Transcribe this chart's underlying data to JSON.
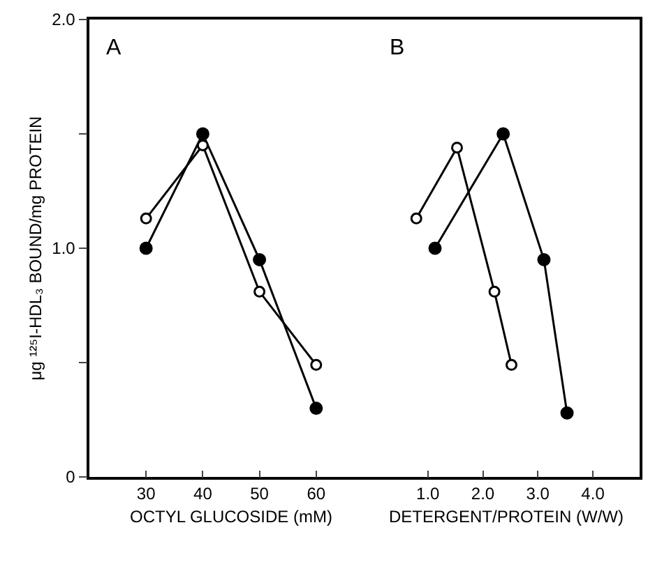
{
  "chart_data": [
    {
      "type": "line",
      "title": "A",
      "xlabel": "OCTYL GLUCOSIDE (mM)",
      "ylabel": "μg ¹²⁵I-HDL₃ BOUND/mg PROTEIN",
      "x": [
        30,
        40,
        50,
        60
      ],
      "xlim": [
        20,
        70
      ],
      "xticks": [
        30,
        40,
        50,
        60
      ],
      "ylim": [
        0,
        2.0
      ],
      "yticks": [
        {
          "value": 0,
          "label": "0"
        },
        {
          "value": 0.5,
          "label": null
        },
        {
          "value": 1.0,
          "label": "1.0"
        },
        {
          "value": 1.5,
          "label": null
        },
        {
          "value": 2.0,
          "label": "2.0"
        }
      ],
      "grid": false,
      "series": [
        {
          "color": "#000000",
          "marker": "circle",
          "values": [
            1.0,
            1.5,
            0.95,
            0.3
          ]
        },
        {
          "color": "#000000",
          "marker": "circle-open",
          "values": [
            1.13,
            1.45,
            0.81,
            0.49
          ]
        }
      ]
    },
    {
      "type": "line",
      "title": "B",
      "xlabel": "DETERGENT/PROTEIN (W/W)",
      "xlim": [
        0,
        4.85
      ],
      "xticks": [
        {
          "value": 1,
          "label": "1.0"
        },
        {
          "value": 2,
          "label": "2.0"
        },
        {
          "value": 3,
          "label": "3.0"
        },
        {
          "value": 4,
          "label": "4.0"
        }
      ],
      "ylim": [
        0,
        2.0
      ],
      "yticks": [
        {
          "value": 0,
          "label": null
        },
        {
          "value": 0.5,
          "label": null
        },
        {
          "value": 1.0,
          "label": null
        },
        {
          "value": 1.5,
          "label": null
        },
        {
          "value": 2.0,
          "label": null
        }
      ],
      "tick_labels": "x",
      "grid": false,
      "series": [
        {
          "color": "#000000",
          "marker": "circle-open",
          "x": [
            0.79,
            1.53,
            2.21,
            2.52
          ],
          "values": [
            1.13,
            1.44,
            0.81,
            0.49
          ]
        },
        {
          "color": "#000000",
          "marker": "circle",
          "x": [
            1.13,
            2.37,
            3.11,
            3.53
          ],
          "values": [
            1.0,
            1.5,
            0.95,
            0.28
          ]
        }
      ]
    }
  ]
}
